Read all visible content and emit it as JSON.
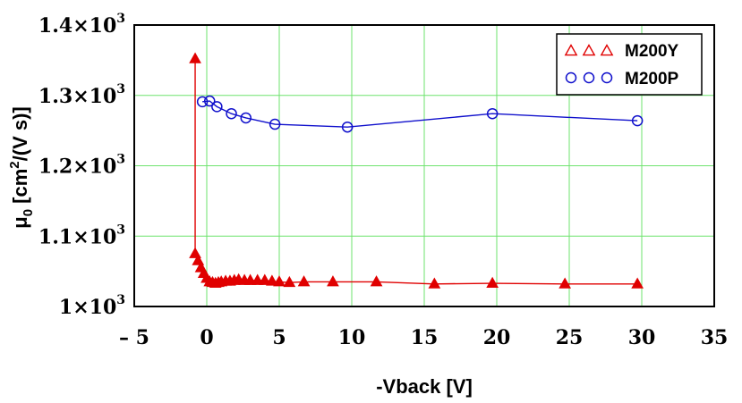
{
  "chart_data": {
    "type": "line",
    "title": "",
    "xlabel": "-Vback [V]",
    "ylabel_main": "μ",
    "ylabel_sub": "0",
    "ylabel_rest": " [cm",
    "ylabel_sup": "2",
    "ylabel_end": "/(V s)]",
    "xlim": [
      -5,
      35
    ],
    "ylim": [
      1000,
      1400
    ],
    "xticks": [
      {
        "value": -5,
        "label": "– 5"
      },
      {
        "value": 0,
        "label": "0"
      },
      {
        "value": 5,
        "label": "5"
      },
      {
        "value": 10,
        "label": "10"
      },
      {
        "value": 15,
        "label": "15"
      },
      {
        "value": 20,
        "label": "20"
      },
      {
        "value": 25,
        "label": "25"
      },
      {
        "value": 30,
        "label": "30"
      },
      {
        "value": 35,
        "label": "35"
      }
    ],
    "yticks": [
      {
        "value": 1000,
        "mant": "1×10",
        "exp": "3"
      },
      {
        "value": 1100,
        "mant": "1.1×10",
        "exp": "3"
      },
      {
        "value": 1200,
        "mant": "1.2×10",
        "exp": "3"
      },
      {
        "value": 1300,
        "mant": "1.3×10",
        "exp": "3"
      },
      {
        "value": 1400,
        "mant": "1.4×10",
        "exp": "3"
      }
    ],
    "grid": true,
    "legend_position": "top-right",
    "series": [
      {
        "name": "M200Y",
        "marker": "triangle",
        "color": "#e00000",
        "x": [
          -0.8,
          -0.8,
          -0.6,
          -0.4,
          -0.2,
          0,
          0.2,
          0.4,
          0.6,
          0.8,
          1.0,
          1.3,
          1.6,
          1.9,
          2.2,
          2.6,
          3.0,
          3.5,
          4.0,
          4.5,
          5.0,
          5.7,
          6.7,
          8.7,
          11.7,
          15.7,
          19.7,
          24.7,
          29.7
        ],
        "y": [
          1352,
          1075,
          1065,
          1055,
          1047,
          1040,
          1035,
          1034,
          1033,
          1034,
          1035,
          1036,
          1036,
          1037,
          1038,
          1037,
          1037,
          1037,
          1037,
          1036,
          1035,
          1034,
          1035,
          1035,
          1035,
          1032,
          1033,
          1032,
          1032
        ]
      },
      {
        "name": "M200P",
        "marker": "circle",
        "color": "#1010cc",
        "x": [
          -0.3,
          0.2,
          0.7,
          1.7,
          2.7,
          4.7,
          9.7,
          19.7,
          29.7
        ],
        "y": [
          1291,
          1292,
          1284,
          1274,
          1268,
          1259,
          1255,
          1274,
          1264
        ]
      }
    ]
  }
}
